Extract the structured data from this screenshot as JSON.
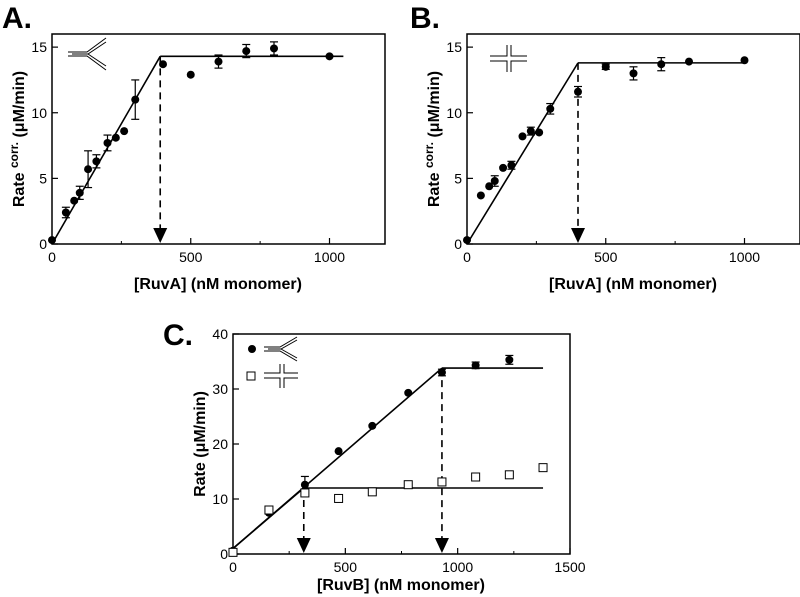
{
  "chart_data": [
    {
      "panel": "A.",
      "type": "scatter",
      "xlabel": "[RuvA] (nM monomer)",
      "ylabel_main": "Rate ",
      "ylabel_sup": "corr.",
      "ylabel_unit": " (μM/min)",
      "xlim": [
        0,
        1200
      ],
      "ylim": [
        0,
        16
      ],
      "xticks": [
        0,
        500,
        1000
      ],
      "yticks": [
        0,
        5,
        10,
        15
      ],
      "legend_icon": "y-junction-icon",
      "marker": "filled-circle",
      "points": [
        {
          "x": 0,
          "y": 0.3
        },
        {
          "x": 50,
          "y": 2.4,
          "err": 0.4
        },
        {
          "x": 80,
          "y": 3.3
        },
        {
          "x": 100,
          "y": 3.9,
          "err": 0.5
        },
        {
          "x": 130,
          "y": 5.7,
          "err": 1.4
        },
        {
          "x": 160,
          "y": 6.3,
          "err": 0.5
        },
        {
          "x": 200,
          "y": 7.7,
          "err": 0.6
        },
        {
          "x": 230,
          "y": 8.1
        },
        {
          "x": 260,
          "y": 8.6
        },
        {
          "x": 300,
          "y": 11.0,
          "err": 1.5
        },
        {
          "x": 400,
          "y": 13.7
        },
        {
          "x": 500,
          "y": 12.9
        },
        {
          "x": 600,
          "y": 13.9,
          "err": 0.5
        },
        {
          "x": 700,
          "y": 14.7,
          "err": 0.5
        },
        {
          "x": 800,
          "y": 14.9,
          "err": 0.5
        },
        {
          "x": 1000,
          "y": 14.3
        }
      ],
      "fit_lines": [
        [
          [
            0,
            0
          ],
          [
            390,
            14.3
          ]
        ],
        [
          [
            390,
            14.3
          ],
          [
            1050,
            14.3
          ]
        ]
      ],
      "breakpoints": [
        {
          "x": 390,
          "y": 14.3
        }
      ]
    },
    {
      "panel": "B.",
      "type": "scatter",
      "xlabel": "[RuvA] (nM monomer)",
      "ylabel_main": "Rate ",
      "ylabel_sup": "corr.",
      "ylabel_unit": " (μM/min)",
      "xlim": [
        0,
        1200
      ],
      "ylim": [
        0,
        16
      ],
      "xticks": [
        0,
        500,
        1000
      ],
      "yticks": [
        0,
        5,
        10,
        15
      ],
      "legend_icon": "x-junction-icon",
      "marker": "filled-circle",
      "points": [
        {
          "x": 0,
          "y": 0.3
        },
        {
          "x": 50,
          "y": 3.7
        },
        {
          "x": 80,
          "y": 4.4
        },
        {
          "x": 100,
          "y": 4.8,
          "err": 0.4
        },
        {
          "x": 130,
          "y": 5.8
        },
        {
          "x": 160,
          "y": 6.0,
          "err": 0.3
        },
        {
          "x": 200,
          "y": 8.2
        },
        {
          "x": 230,
          "y": 8.6,
          "err": 0.3
        },
        {
          "x": 260,
          "y": 8.5
        },
        {
          "x": 300,
          "y": 10.3,
          "err": 0.4
        },
        {
          "x": 400,
          "y": 11.6,
          "err": 0.4
        },
        {
          "x": 500,
          "y": 13.5,
          "err": 0.2
        },
        {
          "x": 600,
          "y": 13.0,
          "err": 0.5
        },
        {
          "x": 700,
          "y": 13.7,
          "err": 0.5
        },
        {
          "x": 800,
          "y": 13.9
        },
        {
          "x": 1000,
          "y": 14.0
        }
      ],
      "fit_lines": [
        [
          [
            0,
            0
          ],
          [
            400,
            13.8
          ]
        ],
        [
          [
            400,
            13.8
          ],
          [
            1000,
            13.8
          ]
        ]
      ],
      "breakpoints": [
        {
          "x": 400,
          "y": 13.8
        }
      ]
    },
    {
      "panel": "C.",
      "type": "scatter",
      "xlabel": "[RuvB] (nM monomer)",
      "ylabel_main": "Rate",
      "ylabel_sup": "",
      "ylabel_unit": " (μM/min)",
      "xlim": [
        0,
        1500
      ],
      "ylim": [
        0,
        40
      ],
      "xticks": [
        0,
        500,
        1000,
        1500
      ],
      "yticks": [
        0,
        10,
        20,
        30,
        40
      ],
      "series": [
        {
          "legend_icon": "y-junction-icon",
          "marker": "filled-circle",
          "points": [
            {
              "x": 0,
              "y": 0.6
            },
            {
              "x": 160,
              "y": 7.5
            },
            {
              "x": 320,
              "y": 12.6,
              "err": 1.5
            },
            {
              "x": 470,
              "y": 18.7
            },
            {
              "x": 620,
              "y": 23.3
            },
            {
              "x": 780,
              "y": 29.3
            },
            {
              "x": 930,
              "y": 33.0,
              "err": 0.6
            },
            {
              "x": 1080,
              "y": 34.3,
              "err": 0.6
            },
            {
              "x": 1230,
              "y": 35.3,
              "err": 0.8
            }
          ],
          "fit_lines": [
            [
              [
                0,
                1.0
              ],
              [
                930,
                33.8
              ]
            ],
            [
              [
                930,
                33.8
              ],
              [
                1380,
                33.8
              ]
            ]
          ]
        },
        {
          "legend_icon": "x-junction-icon",
          "marker": "open-square",
          "points": [
            {
              "x": 0,
              "y": 0.3
            },
            {
              "x": 160,
              "y": 8.0
            },
            {
              "x": 320,
              "y": 11.1
            },
            {
              "x": 470,
              "y": 10.1
            },
            {
              "x": 620,
              "y": 11.3
            },
            {
              "x": 780,
              "y": 12.6
            },
            {
              "x": 930,
              "y": 13.1
            },
            {
              "x": 1080,
              "y": 14.0
            },
            {
              "x": 1230,
              "y": 14.4
            },
            {
              "x": 1380,
              "y": 15.7
            }
          ],
          "fit_lines": [
            [
              [
                0,
                1.0
              ],
              [
                315,
                12.0
              ]
            ],
            [
              [
                315,
                12.0
              ],
              [
                1380,
                12.0
              ]
            ]
          ]
        }
      ],
      "breakpoints": [
        {
          "x": 315,
          "y": 12.0
        },
        {
          "x": 930,
          "y": 33.8
        }
      ]
    }
  ]
}
